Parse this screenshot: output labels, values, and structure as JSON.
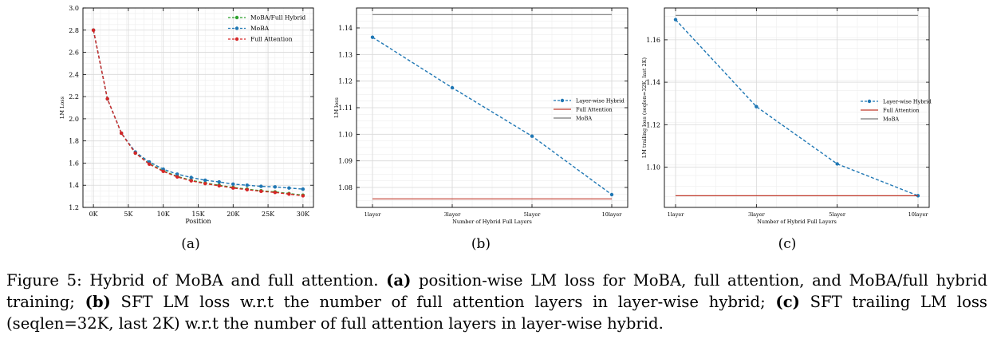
{
  "chart_data": [
    {
      "type": "line",
      "panel": "(a)",
      "xlabel": "Position",
      "ylabel": "LM Loss",
      "xlim": [
        -1500,
        31500
      ],
      "ylim": [
        1.2,
        3.0
      ],
      "xticks": [
        0,
        5000,
        10000,
        15000,
        20000,
        25000,
        30000
      ],
      "xtick_labels": [
        "0K",
        "5K",
        "10K",
        "15K",
        "20K",
        "25K",
        "30K"
      ],
      "yticks": [
        1.2,
        1.4,
        1.6,
        1.8,
        2.0,
        2.2,
        2.4,
        2.6,
        2.8,
        3.0
      ],
      "ytick_labels": [
        "1.2",
        "1.4",
        "1.6",
        "1.8",
        "2.0",
        "2.2",
        "2.4",
        "2.6",
        "2.8",
        "3.0"
      ],
      "grid": true,
      "legend_position": "top-right",
      "x": [
        0,
        2000,
        4000,
        6000,
        8000,
        10000,
        12000,
        14000,
        16000,
        18000,
        20000,
        22000,
        24000,
        26000,
        28000,
        30000
      ],
      "series": [
        {
          "name": "MoBA/Full Hybrid",
          "color": "#2ca02c",
          "style": "dashed",
          "marker": "circle",
          "values": [
            2.8,
            2.18,
            1.87,
            1.69,
            1.595,
            1.53,
            1.48,
            1.445,
            1.42,
            1.4,
            1.38,
            1.365,
            1.35,
            1.34,
            1.325,
            1.31
          ]
        },
        {
          "name": "MoBA",
          "color": "#1f77b4",
          "style": "dashed",
          "marker": "circle",
          "values": [
            2.8,
            2.18,
            1.87,
            1.7,
            1.61,
            1.545,
            1.5,
            1.47,
            1.445,
            1.43,
            1.41,
            1.4,
            1.39,
            1.385,
            1.375,
            1.365
          ]
        },
        {
          "name": "Full Attention",
          "color": "#d62728",
          "style": "dashed",
          "marker": "circle",
          "values": [
            2.8,
            2.18,
            1.87,
            1.69,
            1.59,
            1.525,
            1.475,
            1.44,
            1.415,
            1.395,
            1.375,
            1.36,
            1.345,
            1.335,
            1.32,
            1.305
          ]
        }
      ]
    },
    {
      "type": "line",
      "panel": "(b)",
      "xlabel": "Number of Hybrid Full Layers",
      "ylabel": "LM loss",
      "categories": [
        "1layer",
        "3layer",
        "5layer",
        "10layer"
      ],
      "ylim": [
        1.0725,
        1.1475
      ],
      "yticks": [
        1.08,
        1.09,
        1.1,
        1.11,
        1.12,
        1.13,
        1.14
      ],
      "ytick_labels": [
        "1.08",
        "1.09",
        "1.10",
        "1.11",
        "1.12",
        "1.13",
        "1.14"
      ],
      "grid": true,
      "legend_position": "center-right",
      "series": [
        {
          "name": "Layer-wise Hybrid",
          "color": "#1f77b4",
          "style": "dashed",
          "marker": "circle",
          "values": [
            1.1365,
            1.1175,
            1.0993,
            1.0773
          ]
        },
        {
          "name": "Full Attention",
          "color": "#c0392b",
          "style": "solid",
          "marker": "none",
          "values": [
            1.0757,
            1.0757,
            1.0757,
            1.0757
          ]
        },
        {
          "name": "MoBA",
          "color": "#777777",
          "style": "solid",
          "marker": "none",
          "values": [
            1.145,
            1.145,
            1.145,
            1.145
          ]
        }
      ]
    },
    {
      "type": "line",
      "panel": "(c)",
      "xlabel": "Number of Hybrid Full Layers",
      "ylabel": "LM trailing loss (seqlen=32K, last 2K)",
      "categories": [
        "1layer",
        "3layer",
        "5layer",
        "10layer"
      ],
      "ylim": [
        1.081,
        1.175
      ],
      "yticks": [
        1.1,
        1.12,
        1.14,
        1.16
      ],
      "ytick_labels": [
        "1.10",
        "1.12",
        "1.14",
        "1.16"
      ],
      "grid": true,
      "legend_position": "center-right",
      "series": [
        {
          "name": "Layer-wise Hybrid",
          "color": "#1f77b4",
          "style": "dashed",
          "marker": "circle",
          "values": [
            1.1695,
            1.1285,
            1.1015,
            1.0865
          ]
        },
        {
          "name": "Full Attention",
          "color": "#c0392b",
          "style": "solid",
          "marker": "none",
          "values": [
            1.0865,
            1.0865,
            1.0865,
            1.0865
          ]
        },
        {
          "name": "MoBA",
          "color": "#777777",
          "style": "solid",
          "marker": "none",
          "values": [
            1.1715,
            1.1715,
            1.1715,
            1.1715
          ]
        }
      ]
    }
  ],
  "subfigure_labels": [
    "(a)",
    "(b)",
    "(c)"
  ],
  "caption": {
    "prefix": "Figure 5: Hybrid of MoBA and full attention. ",
    "a_label": "(a)",
    "a_text": " position-wise LM loss for MoBA, full attention, and MoBA/full hybrid training; ",
    "b_label": "(b)",
    "b_text": " SFT LM loss w.r.t the number of full attention layers in layer-wise hybrid; ",
    "c_label": "(c)",
    "c_text": " SFT trailing LM loss (seqlen=32K, last 2K) w.r.t the number of full attention layers in layer-wise hybrid."
  }
}
